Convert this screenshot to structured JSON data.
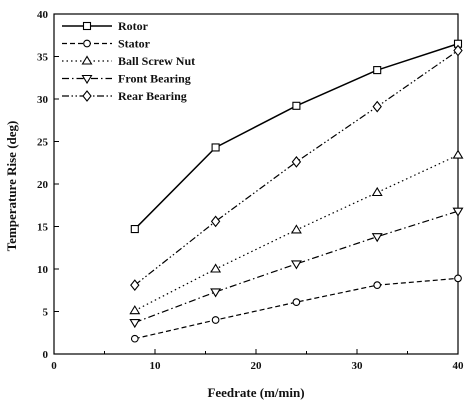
{
  "chart_data": {
    "type": "line",
    "title": "",
    "xlabel": "Feedrate (m/min)",
    "ylabel": "Temperature Rise (deg)",
    "xlim": [
      0,
      40
    ],
    "ylim": [
      0,
      40
    ],
    "xticks": [
      "0",
      "10",
      "20",
      "30",
      "40"
    ],
    "yticks": [
      "0",
      "5",
      "10",
      "15",
      "20",
      "25",
      "30",
      "35",
      "40"
    ],
    "grid": false,
    "legend_position": "top-left",
    "x": [
      8,
      16,
      24,
      32,
      40
    ],
    "series": [
      {
        "name": "Rotor",
        "values": [
          14.7,
          24.3,
          29.2,
          33.4,
          36.5
        ],
        "marker": "square",
        "dash": "solid",
        "color": "#000000"
      },
      {
        "name": "Stator",
        "values": [
          1.8,
          4.0,
          6.1,
          8.1,
          8.9
        ],
        "marker": "circle",
        "dash": "dashed",
        "color": "#000000"
      },
      {
        "name": "Ball Screw Nut",
        "values": [
          5.1,
          10.0,
          14.6,
          19.0,
          23.4
        ],
        "marker": "triangle-up",
        "dash": "dotted",
        "color": "#000000"
      },
      {
        "name": "Front Bearing",
        "values": [
          3.7,
          7.3,
          10.6,
          13.8,
          16.8
        ],
        "marker": "triangle-down",
        "dash": "dashdot",
        "color": "#000000"
      },
      {
        "name": "Rear Bearing",
        "values": [
          8.1,
          15.6,
          22.6,
          29.1,
          35.7
        ],
        "marker": "diamond",
        "dash": "dashdotdot",
        "color": "#000000"
      }
    ]
  }
}
